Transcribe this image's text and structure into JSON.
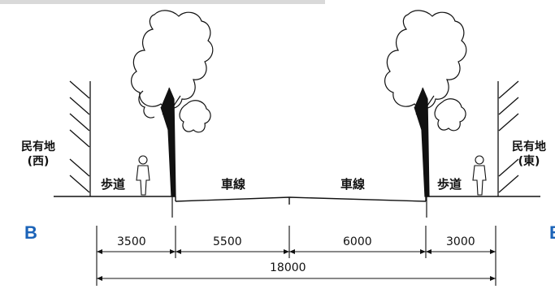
{
  "section_labels": {
    "sidewalk_left": "歩道",
    "lane_left": "車線",
    "lane_right": "車線",
    "sidewalk_right": "歩道"
  },
  "private_land": {
    "west_line1": "民有地",
    "west_line2": "(西)",
    "east_line1": "民有地",
    "east_line2": "(東)"
  },
  "markers": {
    "left": "B",
    "right": "B"
  },
  "dimensions": {
    "segments": [
      "3500",
      "5500",
      "6000",
      "3000"
    ],
    "total": "18000"
  },
  "colors": {
    "ink": "#111111",
    "marker": "#1b63b8",
    "top_bar": "#d9d9d9"
  },
  "icons": [
    "tree-icon",
    "pedestrian-icon",
    "hatch-wall-icon"
  ]
}
